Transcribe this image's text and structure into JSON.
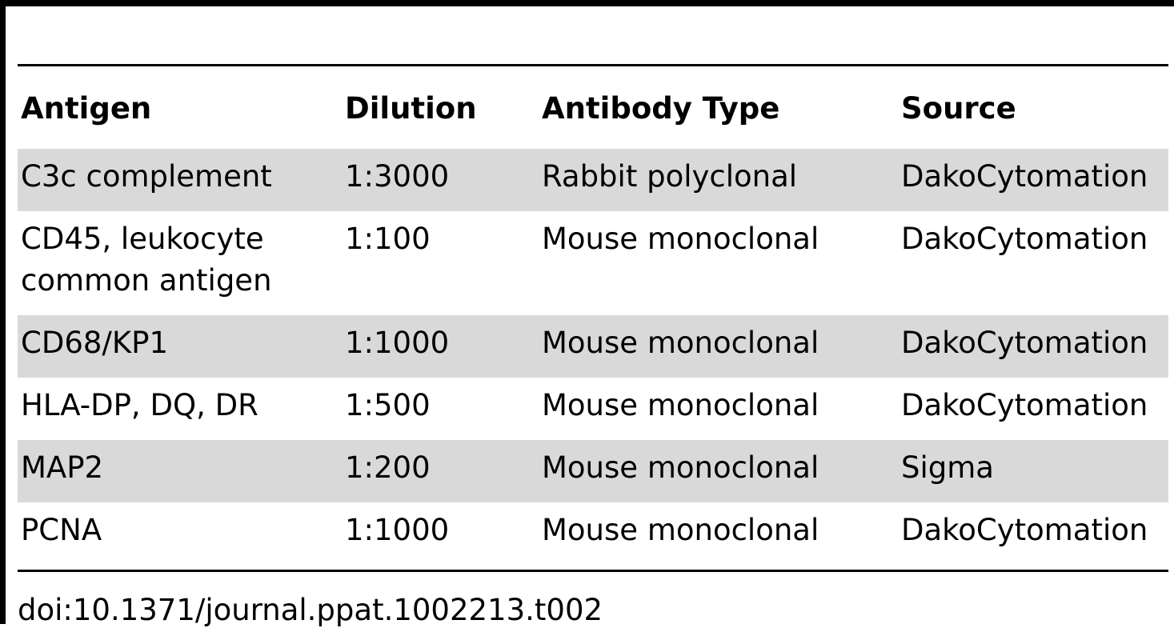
{
  "table": {
    "headers": [
      "Antigen",
      "Dilution",
      "Antibody Type",
      "Source"
    ],
    "rows": [
      [
        "C3c complement",
        "1:3000",
        "Rabbit polyclonal",
        "DakoCytomation"
      ],
      [
        "CD45, leukocyte common antigen",
        "1:100",
        "Mouse monoclonal",
        "DakoCytomation"
      ],
      [
        "CD68/KP1",
        "1:1000",
        "Mouse monoclonal",
        "DakoCytomation"
      ],
      [
        "HLA-DP, DQ, DR",
        "1:500",
        "Mouse monoclonal",
        "DakoCytomation"
      ],
      [
        "MAP2",
        "1:200",
        "Mouse monoclonal",
        "Sigma"
      ],
      [
        "PCNA",
        "1:1000",
        "Mouse monoclonal",
        "DakoCytomation"
      ]
    ],
    "row_shading": "#d9d9d9"
  },
  "footer": {
    "doi": "doi:10.1371/journal.ppat.1002213.t002"
  }
}
